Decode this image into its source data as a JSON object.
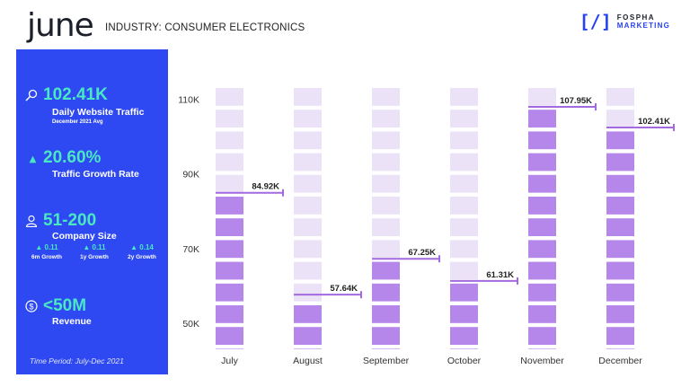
{
  "header": {
    "brand": "june",
    "industry": "INDUSTRY: CONSUMER ELECTRONICS",
    "logo_line1": "FOSPHA",
    "logo_line2": "MARKETING"
  },
  "metrics": {
    "traffic": {
      "value": "102.41K",
      "label": "Daily Website Traffic",
      "sub": "December 2021 Avg",
      "icon": "magnifier-icon"
    },
    "growth": {
      "value": "20.60%",
      "label": "Traffic Growth Rate",
      "icon": "triangle-up-icon"
    },
    "company": {
      "value": "51-200",
      "label": "Company Size",
      "icon": "person-icon"
    },
    "revenue": {
      "value": "<50M",
      "label": "Revenue",
      "icon": "dollar-coin-icon"
    }
  },
  "company_growth": [
    {
      "value": "0.11",
      "label": "6m Growth"
    },
    {
      "value": "0.11",
      "label": "1y Growth"
    },
    {
      "value": "0.14",
      "label": "2y Growth"
    }
  ],
  "footer": {
    "period": "Time Period: July-Dec 2021"
  },
  "colors": {
    "panel": "#2e49f1",
    "accent": "#49e8c2",
    "bar_filled": "#b587ea",
    "bar_empty": "#ebe2f8",
    "marker": "#a36ae0"
  },
  "chart_data": {
    "type": "bar",
    "categories": [
      "July",
      "August",
      "September",
      "October",
      "November",
      "December"
    ],
    "values": [
      84.92,
      57.64,
      67.25,
      61.31,
      107.95,
      102.41
    ],
    "value_labels": [
      "84.92K",
      "57.64K",
      "67.25K",
      "61.31K",
      "107.95K",
      "102.41K"
    ],
    "y_ticks": [
      50,
      70,
      90,
      110
    ],
    "y_tick_labels": [
      "50K",
      "70K",
      "90K",
      "110K"
    ],
    "ylim": [
      43,
      113
    ],
    "title": "",
    "xlabel": "",
    "ylabel": "",
    "grid": false,
    "legend": "none"
  }
}
